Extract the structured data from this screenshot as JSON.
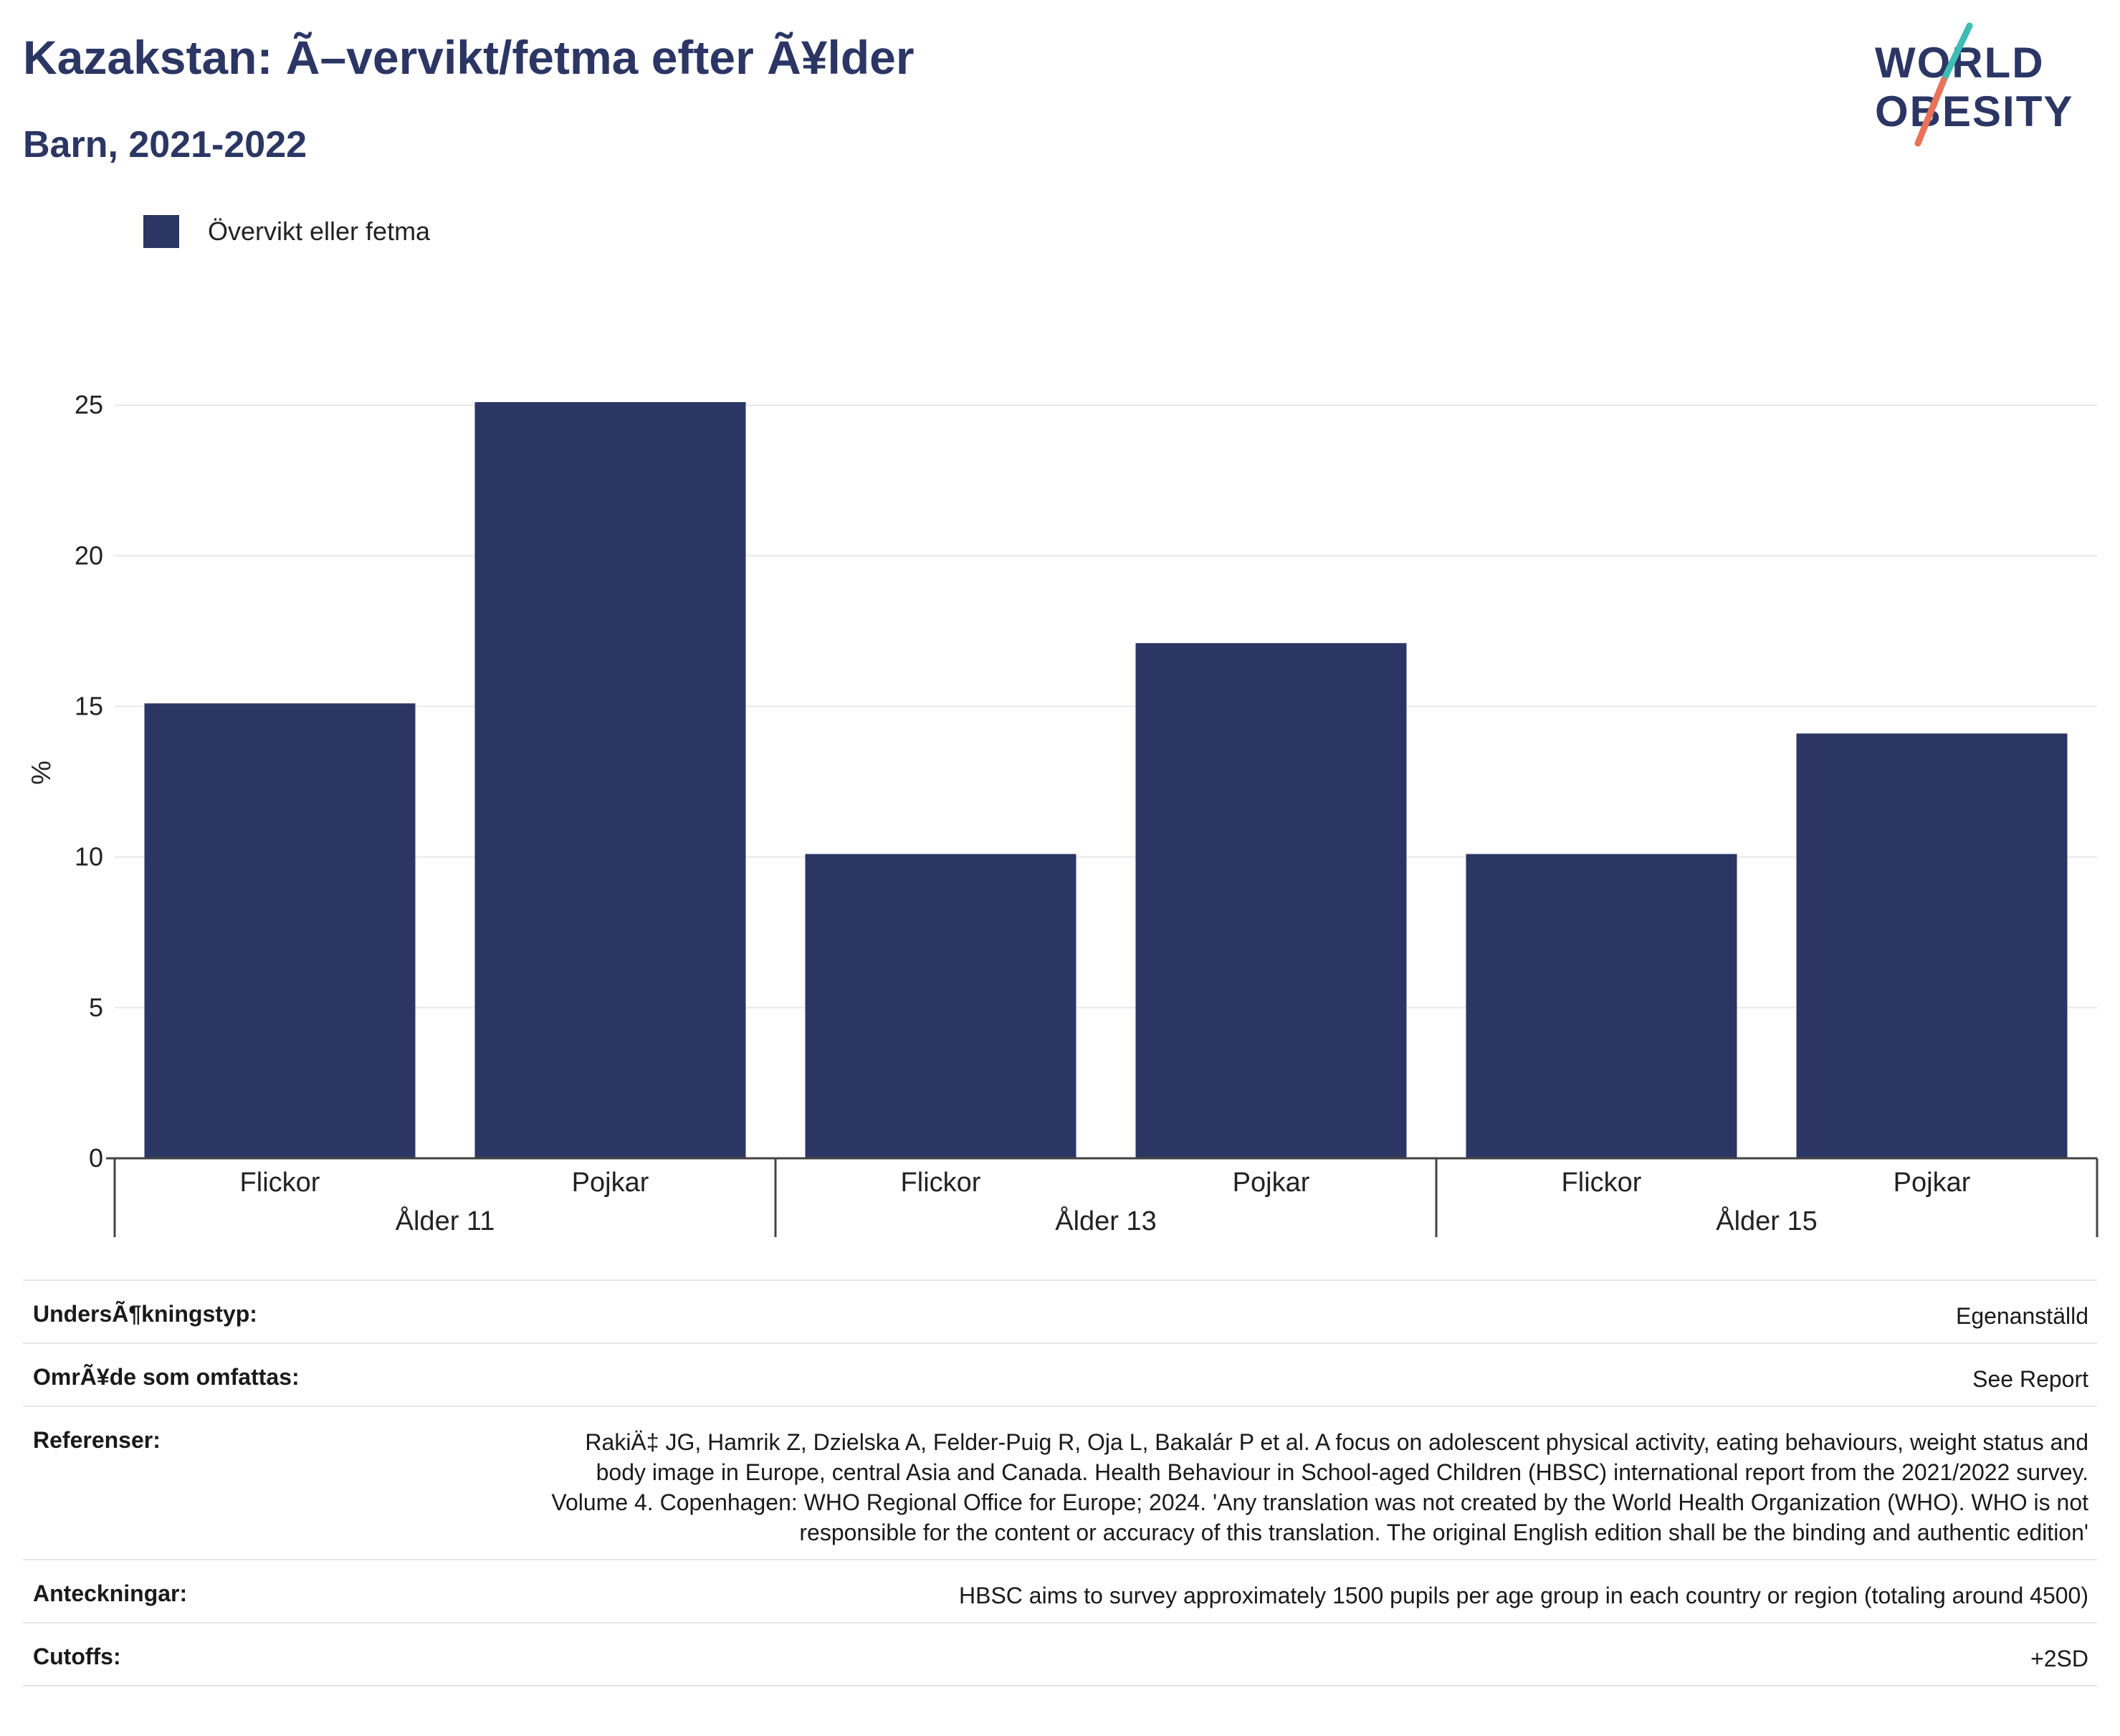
{
  "header": {
    "title": "Kazakstan: Ã–vervikt/fetma efter Ã¥lder",
    "subtitle": "Barn, 2021-2022"
  },
  "logo": {
    "line1": "WORLD",
    "line2": "OBESITY",
    "colors": {
      "text": "#2b3664",
      "slash_top": "#3dbdb4",
      "slash_bottom": "#e8735a"
    }
  },
  "legend": {
    "label": "Övervikt eller fetma",
    "color": "#2b3664"
  },
  "chart_data": {
    "type": "bar",
    "ylabel": "%",
    "ylim": [
      0,
      25.6
    ],
    "yticks": [
      0,
      5,
      10,
      15,
      20,
      25
    ],
    "grid": true,
    "legend_position": "top-left",
    "bar_color": "#2b3664",
    "groups": [
      {
        "label": "Ålder 11",
        "categories": [
          "Flickor",
          "Pojkar"
        ],
        "values": [
          15.1,
          25.1
        ]
      },
      {
        "label": "Ålder 13",
        "categories": [
          "Flickor",
          "Pojkar"
        ],
        "values": [
          10.1,
          17.1
        ]
      },
      {
        "label": "Ålder 15",
        "categories": [
          "Flickor",
          "Pojkar"
        ],
        "values": [
          10.1,
          14.1
        ]
      }
    ],
    "series": [
      {
        "name": "Övervikt eller fetma",
        "values": [
          15.1,
          25.1,
          10.1,
          17.1,
          10.1,
          14.1
        ]
      }
    ]
  },
  "meta": [
    {
      "key": "UndersÃ¶kningstyp:",
      "value": "Egenanställd"
    },
    {
      "key": "OmrÃ¥de som omfattas:",
      "value": "See Report"
    },
    {
      "key": "Referenser:",
      "value": "RakiÄ‡ JG, Hamrik Z, Dzielska A, Felder-Puig R, Oja L, Bakalár P et al. A focus on adolescent physical activity, eating behaviours, weight status and body image in Europe, central Asia and Canada. Health Behaviour in School-aged Children (HBSC) international report from the 2021/2022 survey. Volume 4. Copenhagen: WHO Regional Office for Europe; 2024. 'Any translation was not created by the World Health Organization (WHO). WHO is not responsible for the content or accuracy of this translation. The original English edition shall be the binding and authentic edition'"
    },
    {
      "key": "Anteckningar:",
      "value": "HBSC aims to survey approximately 1500 pupils per age group in each country or region (totaling around 4500)"
    },
    {
      "key": "Cutoffs:",
      "value": "+2SD"
    }
  ]
}
